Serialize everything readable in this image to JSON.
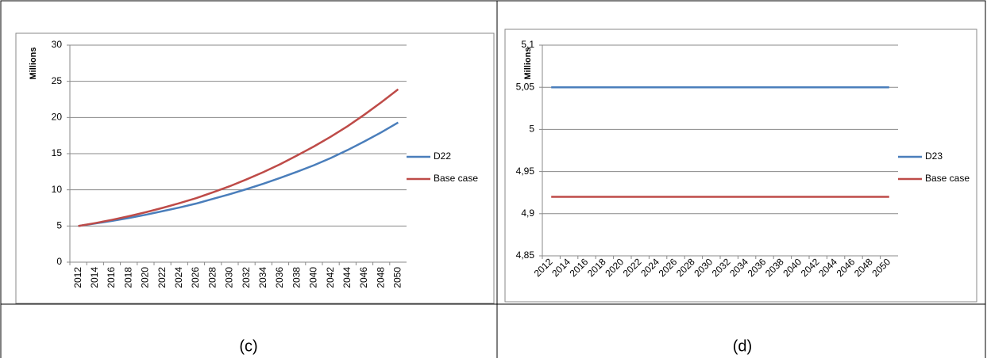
{
  "chart_data": [
    {
      "type": "line",
      "caption": "(c)",
      "ylabel": "Millions",
      "categories": [
        2012,
        2014,
        2016,
        2018,
        2020,
        2022,
        2024,
        2026,
        2028,
        2030,
        2032,
        2034,
        2036,
        2038,
        2040,
        2042,
        2044,
        2046,
        2048,
        2050
      ],
      "series": [
        {
          "name": "D22",
          "color": "#4a7ebb",
          "values": [
            5,
            5.35,
            5.7,
            6.1,
            6.55,
            7.05,
            7.55,
            8.1,
            8.75,
            9.4,
            10.1,
            10.85,
            11.65,
            12.5,
            13.4,
            14.4,
            15.5,
            16.7,
            17.95,
            19.3
          ]
        },
        {
          "name": "Base case",
          "color": "#be4b48",
          "values": [
            5,
            5.4,
            5.85,
            6.35,
            6.9,
            7.5,
            8.15,
            8.85,
            9.65,
            10.5,
            11.45,
            12.45,
            13.55,
            14.75,
            16.0,
            17.35,
            18.8,
            20.4,
            22.1,
            23.9
          ]
        }
      ],
      "ylim": [
        0,
        30
      ],
      "yticks": [
        0,
        5,
        10,
        15,
        20,
        25,
        30
      ],
      "grid": true,
      "legend": "right"
    },
    {
      "type": "line",
      "caption": "(d)",
      "ylabel": "Millions",
      "categories": [
        2012,
        2014,
        2016,
        2018,
        2020,
        2022,
        2024,
        2026,
        2028,
        2030,
        2032,
        2034,
        2036,
        2038,
        2040,
        2042,
        2044,
        2046,
        2048,
        2050
      ],
      "series": [
        {
          "name": "D23",
          "color": "#4a7ebb",
          "values": [
            5.05,
            5.05,
            5.05,
            5.05,
            5.05,
            5.05,
            5.05,
            5.05,
            5.05,
            5.05,
            5.05,
            5.05,
            5.05,
            5.05,
            5.05,
            5.05,
            5.05,
            5.05,
            5.05,
            5.05
          ]
        },
        {
          "name": "Base case",
          "color": "#be4b48",
          "values": [
            4.92,
            4.92,
            4.92,
            4.92,
            4.92,
            4.92,
            4.92,
            4.92,
            4.92,
            4.92,
            4.92,
            4.92,
            4.92,
            4.92,
            4.92,
            4.92,
            4.92,
            4.92,
            4.92,
            4.92
          ]
        }
      ],
      "ylim": [
        4.85,
        5.1
      ],
      "yticks": [
        {
          "value": 4.85,
          "label": "4,85"
        },
        {
          "value": 4.9,
          "label": "4,9"
        },
        {
          "value": 4.95,
          "label": "4,95"
        },
        5,
        {
          "value": 5.05,
          "label": "5,05"
        },
        {
          "value": 5.1,
          "label": "5,1"
        }
      ],
      "grid": true,
      "legend": "right"
    }
  ]
}
